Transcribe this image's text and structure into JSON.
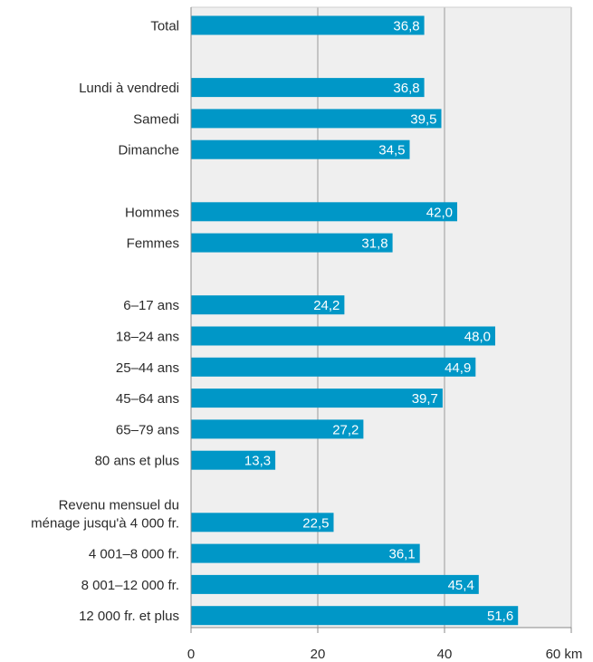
{
  "chart_data": {
    "type": "bar",
    "orientation": "horizontal",
    "unit": "km",
    "xlim": [
      0,
      60
    ],
    "x_ticks": [
      "0",
      "20",
      "40",
      "60 km"
    ],
    "grid": true,
    "bar_color": "#0097c7",
    "plot_background": "#efefef",
    "groups": [
      {
        "items": [
          {
            "label": [
              "Total"
            ],
            "value": 36.8,
            "value_label": "36,8"
          }
        ]
      },
      {
        "items": [
          {
            "label": [
              "Lundi à vendredi"
            ],
            "value": 36.8,
            "value_label": "36,8"
          },
          {
            "label": [
              "Samedi"
            ],
            "value": 39.5,
            "value_label": "39,5"
          },
          {
            "label": [
              "Dimanche"
            ],
            "value": 34.5,
            "value_label": "34,5"
          }
        ]
      },
      {
        "items": [
          {
            "label": [
              "Hommes"
            ],
            "value": 42.0,
            "value_label": "42,0"
          },
          {
            "label": [
              "Femmes"
            ],
            "value": 31.8,
            "value_label": "31,8"
          }
        ]
      },
      {
        "items": [
          {
            "label": [
              "6–17 ans"
            ],
            "value": 24.2,
            "value_label": "24,2"
          },
          {
            "label": [
              "18–24 ans"
            ],
            "value": 48.0,
            "value_label": "48,0"
          },
          {
            "label": [
              "25–44 ans"
            ],
            "value": 44.9,
            "value_label": "44,9"
          },
          {
            "label": [
              "45–64 ans"
            ],
            "value": 39.7,
            "value_label": "39,7"
          },
          {
            "label": [
              "65–79 ans"
            ],
            "value": 27.2,
            "value_label": "27,2"
          },
          {
            "label": [
              "80 ans et plus"
            ],
            "value": 13.3,
            "value_label": "13,3"
          }
        ]
      },
      {
        "items": [
          {
            "label": [
              "Revenu mensuel du",
              "ménage jusqu'à 4 000 fr."
            ],
            "value": 22.5,
            "value_label": "22,5"
          },
          {
            "label": [
              "4 001–8 000 fr."
            ],
            "value": 36.1,
            "value_label": "36,1"
          },
          {
            "label": [
              "8 001–12 000 fr."
            ],
            "value": 45.4,
            "value_label": "45,4"
          },
          {
            "label": [
              "12 000 fr. et plus"
            ],
            "value": 51.6,
            "value_label": "51,6"
          }
        ]
      }
    ]
  }
}
